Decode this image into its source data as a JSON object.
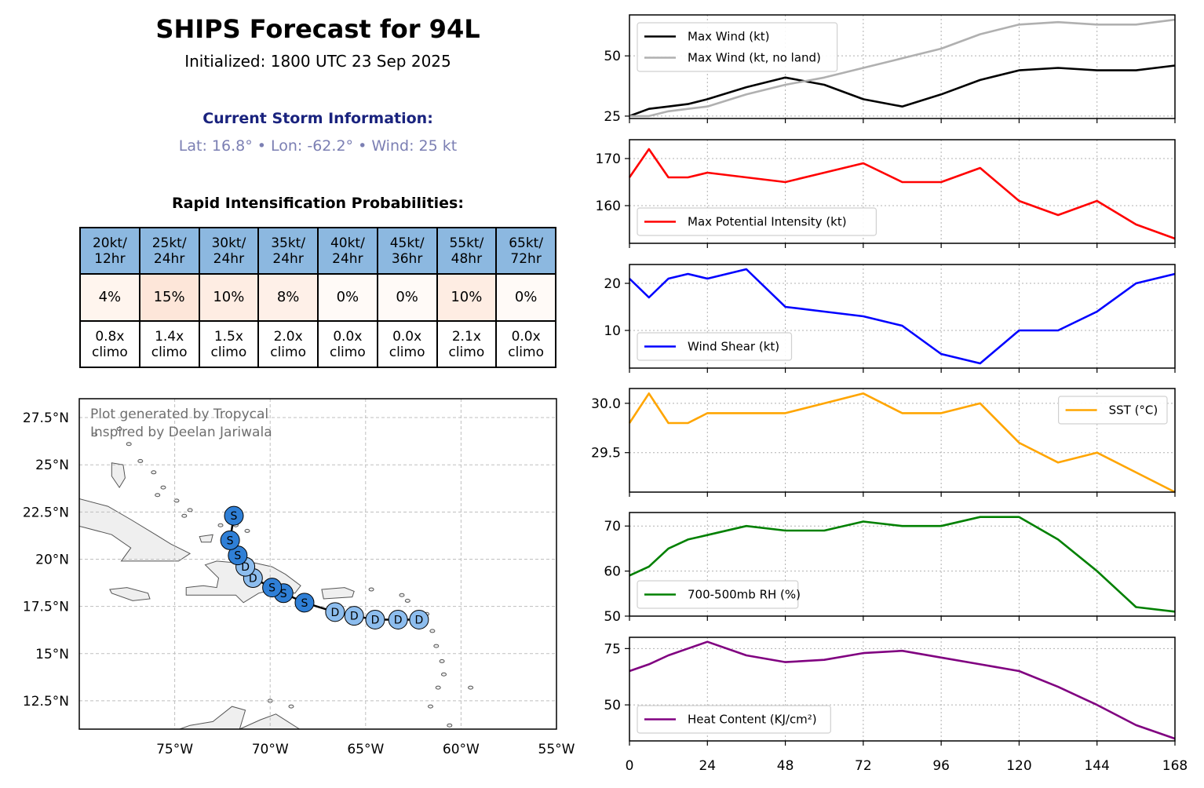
{
  "title": "SHIPS Forecast for 94L",
  "subtitle": "Initialized: 1800 UTC 23 Sep 2025",
  "storm_header": "Current Storm Information:",
  "storm_info": "Lat: 16.8° • Lon: -62.2° • Wind: 25 kt",
  "ri": {
    "header": "Rapid Intensification Probabilities:",
    "columns": [
      {
        "l1": "20kt/",
        "l2": "12hr",
        "prob": "4%",
        "climo1": "0.8x",
        "climo2": "climo",
        "fill": "#fff5ee"
      },
      {
        "l1": "25kt/",
        "l2": "24hr",
        "prob": "15%",
        "climo1": "1.4x",
        "climo2": "climo",
        "fill": "#fde6d9"
      },
      {
        "l1": "30kt/",
        "l2": "24hr",
        "prob": "10%",
        "climo1": "1.5x",
        "climo2": "climo",
        "fill": "#feede3"
      },
      {
        "l1": "35kt/",
        "l2": "24hr",
        "prob": "8%",
        "climo1": "2.0x",
        "climo2": "climo",
        "fill": "#fef0e8"
      },
      {
        "l1": "40kt/",
        "l2": "24hr",
        "prob": "0%",
        "climo1": "0.0x",
        "climo2": "climo",
        "fill": "#fffaf7"
      },
      {
        "l1": "45kt/",
        "l2": "36hr",
        "prob": "0%",
        "climo1": "0.0x",
        "climo2": "climo",
        "fill": "#fffaf7"
      },
      {
        "l1": "55kt/",
        "l2": "48hr",
        "prob": "10%",
        "climo1": "2.1x",
        "climo2": "climo",
        "fill": "#feede3"
      },
      {
        "l1": "65kt/",
        "l2": "72hr",
        "prob": "0%",
        "climo1": "0.0x",
        "climo2": "climo",
        "fill": "#fffaf7"
      }
    ]
  },
  "map": {
    "credit1": "Plot generated by Tropycal",
    "credit2": "Inspired by Deelan Jariwala",
    "lon_range": [
      -80,
      -55
    ],
    "lat_range": [
      11,
      28.5
    ],
    "lon_ticks": [
      {
        "v": -75,
        "label": "75°W"
      },
      {
        "v": -70,
        "label": "70°W"
      },
      {
        "v": -65,
        "label": "65°W"
      },
      {
        "v": -60,
        "label": "60°W"
      },
      {
        "v": -55,
        "label": "55°W"
      }
    ],
    "lat_ticks": [
      {
        "v": 12.5,
        "label": "12.5°N"
      },
      {
        "v": 15,
        "label": "15°N"
      },
      {
        "v": 17.5,
        "label": "17.5°N"
      },
      {
        "v": 20,
        "label": "20°N"
      },
      {
        "v": 22.5,
        "label": "22.5°N"
      },
      {
        "v": 25,
        "label": "25°N"
      },
      {
        "v": 27.5,
        "label": "27.5°N"
      }
    ],
    "land_color": "#efefef",
    "depression_color": "#8dbdee",
    "storm_color": "#2f7fd6",
    "track": [
      {
        "lon": -62.2,
        "lat": 16.8,
        "cat": "D"
      },
      {
        "lon": -63.3,
        "lat": 16.8,
        "cat": "D"
      },
      {
        "lon": -64.5,
        "lat": 16.8,
        "cat": "D"
      },
      {
        "lon": -65.6,
        "lat": 17.0,
        "cat": "D"
      },
      {
        "lon": -66.6,
        "lat": 17.2,
        "cat": "D"
      },
      {
        "lon": -68.2,
        "lat": 17.7,
        "cat": "S"
      },
      {
        "lon": -69.3,
        "lat": 18.2,
        "cat": "S"
      },
      {
        "lon": -69.9,
        "lat": 18.5,
        "cat": "S"
      },
      {
        "lon": -70.9,
        "lat": 19.0,
        "cat": "D"
      },
      {
        "lon": -71.3,
        "lat": 19.6,
        "cat": "D"
      },
      {
        "lon": -71.7,
        "lat": 20.2,
        "cat": "S"
      },
      {
        "lon": -72.1,
        "lat": 21.0,
        "cat": "S"
      },
      {
        "lon": -71.9,
        "lat": 22.3,
        "cat": "S"
      }
    ]
  },
  "chart_data": [
    {
      "type": "line",
      "x": [
        0,
        6,
        12,
        18,
        24,
        36,
        48,
        60,
        72,
        84,
        96,
        108,
        120,
        132,
        144,
        156,
        168
      ],
      "xlim": [
        0,
        168
      ],
      "ylim": [
        24,
        67
      ],
      "yticks": [
        25,
        50
      ],
      "legend": "upper-left",
      "grid": true,
      "series": [
        {
          "name": "Max Wind (kt)",
          "color": "#000000",
          "values": [
            25,
            28,
            29,
            30,
            32,
            37,
            41,
            38,
            32,
            29,
            34,
            40,
            44,
            45,
            44,
            44,
            46
          ]
        },
        {
          "name": "Max Wind (kt, no land)",
          "color": "#b0b0b0",
          "values": [
            25,
            25,
            27,
            28,
            29,
            34,
            38,
            41,
            45,
            49,
            53,
            59,
            63,
            64,
            63,
            63,
            65
          ]
        }
      ]
    },
    {
      "type": "line",
      "x": [
        0,
        6,
        12,
        18,
        24,
        36,
        48,
        60,
        72,
        84,
        96,
        108,
        120,
        132,
        144,
        156,
        168
      ],
      "xlim": [
        0,
        168
      ],
      "ylim": [
        152,
        174
      ],
      "yticks": [
        160,
        170
      ],
      "legend": "lower-left",
      "grid": true,
      "series": [
        {
          "name": "Max Potential Intensity (kt)",
          "color": "#ff0000",
          "values": [
            166,
            172,
            166,
            166,
            167,
            166,
            165,
            167,
            169,
            165,
            165,
            168,
            161,
            158,
            161,
            156,
            153
          ]
        }
      ]
    },
    {
      "type": "line",
      "x": [
        0,
        6,
        12,
        18,
        24,
        36,
        48,
        60,
        72,
        84,
        96,
        108,
        120,
        132,
        144,
        156,
        168
      ],
      "xlim": [
        0,
        168
      ],
      "ylim": [
        2,
        24
      ],
      "yticks": [
        10,
        20
      ],
      "legend": "lower-left",
      "grid": true,
      "series": [
        {
          "name": "Wind Shear (kt)",
          "color": "#0000ff",
          "values": [
            21,
            17,
            21,
            22,
            21,
            23,
            15,
            14,
            13,
            11,
            5,
            3,
            10,
            10,
            14,
            20,
            22
          ]
        }
      ]
    },
    {
      "type": "line",
      "x": [
        0,
        6,
        12,
        18,
        24,
        36,
        48,
        60,
        72,
        84,
        96,
        108,
        120,
        132,
        144,
        156,
        168
      ],
      "xlim": [
        0,
        168
      ],
      "ylim": [
        29.1,
        30.15
      ],
      "yticks": [
        29.5,
        30.0
      ],
      "ytick_labels": [
        "29.5",
        "30.0"
      ],
      "legend": "upper-right",
      "grid": true,
      "series": [
        {
          "name": "SST (°C)",
          "color": "#ffa500",
          "values": [
            29.8,
            30.1,
            29.8,
            29.8,
            29.9,
            29.9,
            29.9,
            30.0,
            30.1,
            29.9,
            29.9,
            30.0,
            29.6,
            29.4,
            29.5,
            29.3,
            29.1
          ]
        }
      ]
    },
    {
      "type": "line",
      "x": [
        0,
        6,
        12,
        18,
        24,
        36,
        48,
        60,
        72,
        84,
        96,
        108,
        120,
        132,
        144,
        156,
        168
      ],
      "xlim": [
        0,
        168
      ],
      "ylim": [
        50,
        73
      ],
      "yticks": [
        50,
        60,
        70
      ],
      "legend": "lower-left",
      "grid": true,
      "series": [
        {
          "name": "700-500mb RH (%)",
          "color": "#008000",
          "values": [
            59,
            61,
            65,
            67,
            68,
            70,
            69,
            69,
            71,
            70,
            70,
            72,
            72,
            67,
            60,
            52,
            51
          ]
        }
      ]
    },
    {
      "type": "line",
      "x": [
        0,
        6,
        12,
        18,
        24,
        36,
        48,
        60,
        72,
        84,
        96,
        108,
        120,
        132,
        144,
        156,
        168
      ],
      "xlim": [
        0,
        168
      ],
      "ylim": [
        34,
        80
      ],
      "yticks": [
        50,
        75
      ],
      "xticks": [
        0,
        24,
        48,
        72,
        96,
        120,
        144,
        168
      ],
      "legend": "lower-left",
      "grid": true,
      "series": [
        {
          "name": "Heat Content (KJ/cm²)",
          "color": "#800080",
          "values": [
            65,
            68,
            72,
            75,
            78,
            72,
            69,
            70,
            73,
            74,
            71,
            68,
            65,
            58,
            50,
            41,
            35
          ]
        }
      ]
    }
  ]
}
